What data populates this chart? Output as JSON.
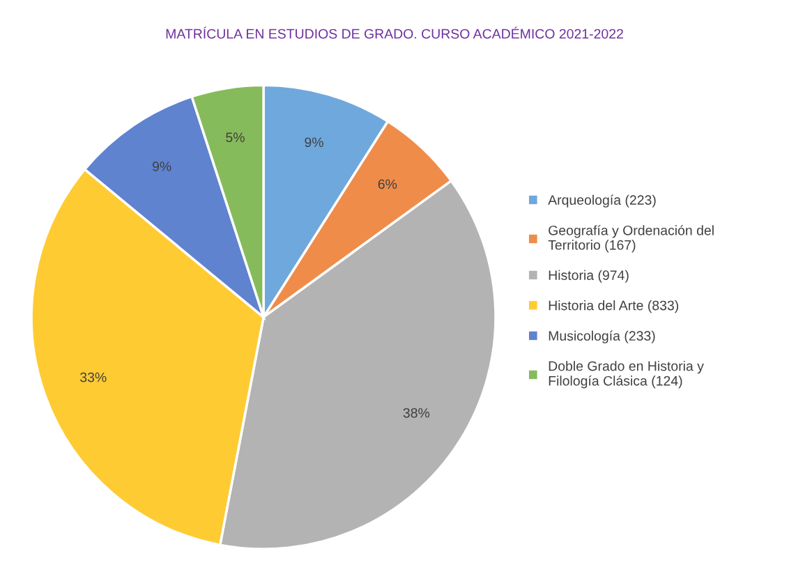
{
  "chart_data": {
    "type": "pie",
    "title": "MATRÍCULA EN ESTUDIOS DE GRADO. CURSO ACADÉMICO 2021-2022",
    "categories": [
      "Arqueología (223)",
      "Geografía y Ordenación del Territorio (167)",
      "Historia (974)",
      "Historia del Arte (833)",
      "Musicología (233)",
      "Doble Grado en Historia y Filología Clásica (124)"
    ],
    "values": [
      9,
      6,
      38,
      33,
      9,
      5
    ],
    "value_labels": [
      "9%",
      "6%",
      "38%",
      "33%",
      "9%",
      "5%"
    ],
    "colors": [
      "#6fa8dc",
      "#ef8c4a",
      "#b3b3b3",
      "#ffcb33",
      "#5f83cf",
      "#86bb5c"
    ],
    "legend": "right"
  }
}
